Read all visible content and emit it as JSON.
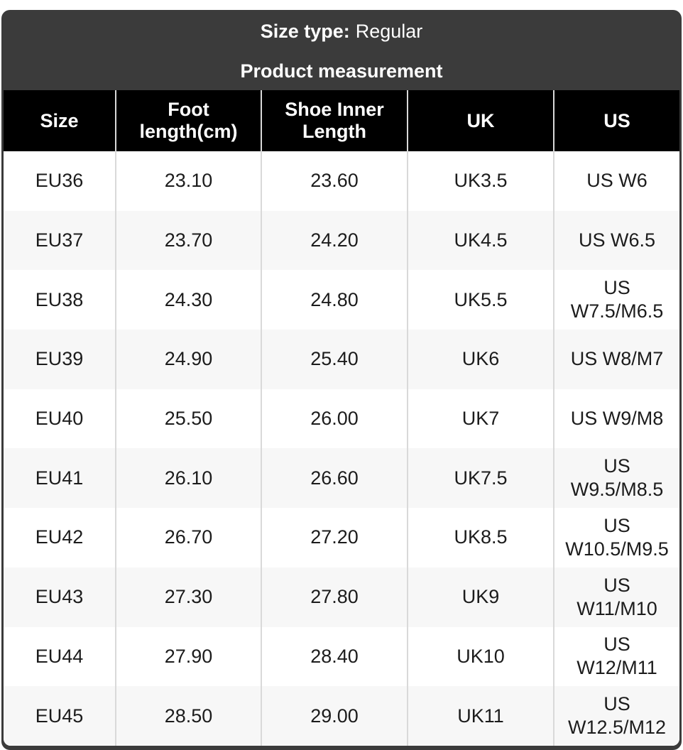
{
  "header": {
    "size_type_label": "Size type:",
    "size_type_value": "Regular",
    "title": "Product measurement"
  },
  "chart_data": {
    "type": "table",
    "title": "Product measurement",
    "columns": [
      "Size",
      "Foot\nlength(cm)",
      "Shoe Inner\nLength",
      "UK",
      "US"
    ],
    "rows": [
      [
        "EU36",
        "23.10",
        "23.60",
        "UK3.5",
        "US W6"
      ],
      [
        "EU37",
        "23.70",
        "24.20",
        "UK4.5",
        "US W6.5"
      ],
      [
        "EU38",
        "24.30",
        "24.80",
        "UK5.5",
        "US\nW7.5/M6.5"
      ],
      [
        "EU39",
        "24.90",
        "25.40",
        "UK6",
        "US W8/M7"
      ],
      [
        "EU40",
        "25.50",
        "26.00",
        "UK7",
        "US W9/M8"
      ],
      [
        "EU41",
        "26.10",
        "26.60",
        "UK7.5",
        "US\nW9.5/M8.5"
      ],
      [
        "EU42",
        "26.70",
        "27.20",
        "UK8.5",
        "US\nW10.5/M9.5"
      ],
      [
        "EU43",
        "27.30",
        "27.80",
        "UK9",
        "US\nW11/M10"
      ],
      [
        "EU44",
        "27.90",
        "28.40",
        "UK10",
        "US\nW12/M11"
      ],
      [
        "EU45",
        "28.50",
        "29.00",
        "UK11",
        "US\nW12.5/M12"
      ]
    ]
  },
  "colors": {
    "panel_bg": "#3b3b3b",
    "table_header_bg": "#000000",
    "table_header_text": "#ffffff",
    "row_bg": "#ffffff",
    "row_alt_bg": "#f7f7f7",
    "divider": "#d9d9d9",
    "body_text": "#1c1c1c"
  }
}
